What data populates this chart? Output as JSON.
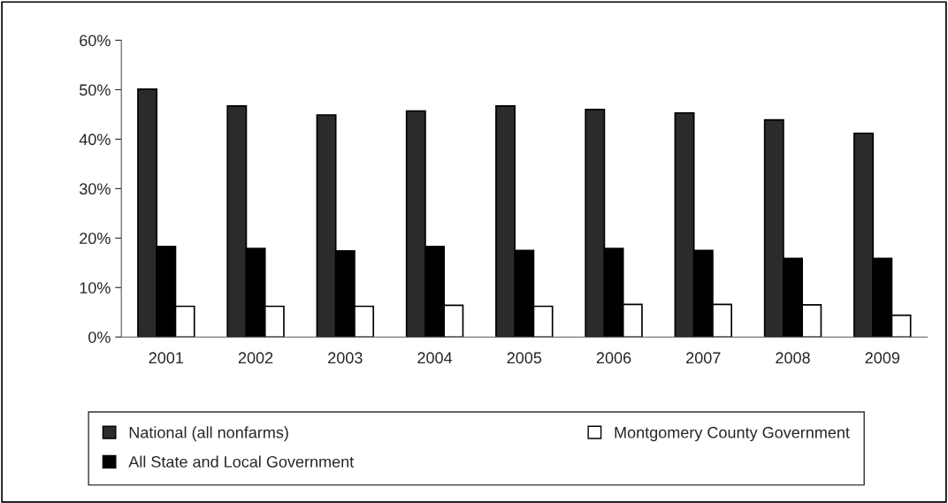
{
  "chart_data": {
    "type": "bar",
    "categories": [
      "2001",
      "2002",
      "2003",
      "2004",
      "2005",
      "2006",
      "2007",
      "2008",
      "2009"
    ],
    "series": [
      {
        "name": "National (all nonfarms)",
        "color": "#2b2b2b",
        "values": [
          50.1,
          46.7,
          44.9,
          45.7,
          46.7,
          46.0,
          45.3,
          43.9,
          41.2
        ]
      },
      {
        "name": "All State and Local Government",
        "color": "#000000",
        "values": [
          18.3,
          17.9,
          17.4,
          18.3,
          17.5,
          17.9,
          17.5,
          15.9,
          15.9
        ]
      },
      {
        "name": "Montgomery County Government",
        "color": "#ffffff",
        "values": [
          6.2,
          6.2,
          6.2,
          6.4,
          6.2,
          6.6,
          6.6,
          6.5,
          4.4
        ]
      }
    ],
    "ylim": [
      0,
      60
    ],
    "yticks": [
      {
        "value": 0,
        "label": "0%"
      },
      {
        "value": 10,
        "label": "10%"
      },
      {
        "value": 20,
        "label": "20%"
      },
      {
        "value": 30,
        "label": "30%"
      },
      {
        "value": 40,
        "label": "40%"
      },
      {
        "value": 50,
        "label": "50%"
      },
      {
        "value": 60,
        "label": "60%"
      }
    ],
    "grid": false,
    "legend": "bottom"
  }
}
